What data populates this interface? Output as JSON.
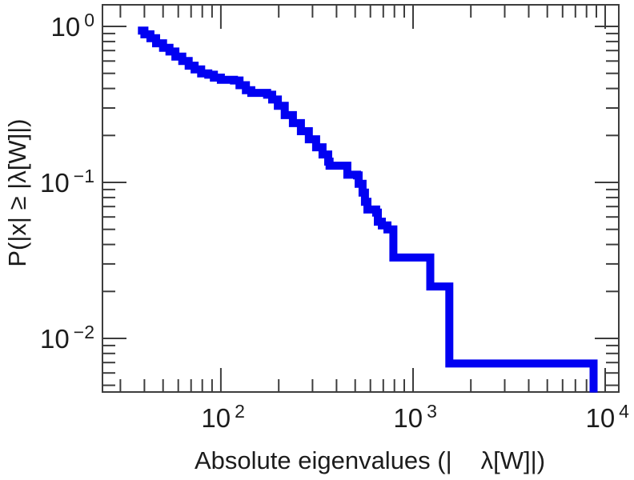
{
  "colors": {
    "line": "#0101f2",
    "axis": "#3d3d3d",
    "text": "#1c1c1c",
    "background": "#ffffff"
  },
  "labels": {
    "x_axis_prefix": "Absolute eigenvalues (|",
    "x_axis_suffix": "λ[W]|)",
    "y_axis": "P(|x| ≥ |λ[W]|)"
  },
  "ticks": {
    "x_major": [
      {
        "base": "10",
        "exp": "2",
        "value": 100
      },
      {
        "base": "10",
        "exp": "3",
        "value": 1000
      },
      {
        "base": "10",
        "exp": "4",
        "value": 10000
      }
    ],
    "y_major": [
      {
        "base": "10",
        "exp": "0",
        "value": 1
      },
      {
        "base": "10",
        "exp": "−1",
        "value": 0.1
      },
      {
        "base": "10",
        "exp": "−2",
        "value": 0.01
      }
    ],
    "x_minor": [
      30,
      40,
      50,
      60,
      70,
      80,
      90,
      200,
      300,
      400,
      500,
      600,
      700,
      800,
      900,
      2000,
      3000,
      4000,
      5000,
      6000,
      7000,
      8000,
      9000
    ],
    "y_minor": [
      0.9,
      0.8,
      0.7,
      0.6,
      0.5,
      0.4,
      0.3,
      0.2,
      0.09,
      0.08,
      0.07,
      0.06,
      0.05,
      0.04,
      0.03,
      0.02,
      0.009,
      0.008,
      0.007,
      0.006,
      0.005
    ]
  },
  "chart_data": {
    "type": "line",
    "subtype": "log-log complementary CDF step plot",
    "title": "",
    "xlabel": "Absolute eigenvalues (| λ[W]|)",
    "ylabel": "P(|x| ≥ |λ[W]|)",
    "x_scale": "log",
    "y_scale": "log",
    "xlim": [
      24.2,
      11770
    ],
    "ylim": [
      0.00453,
      1.376
    ],
    "grid": false,
    "legend": null,
    "series": [
      {
        "name": "eigenvalue-ccdf",
        "color": "#0101f2",
        "points": [
          [
            37,
            0.94
          ],
          [
            40,
            0.89
          ],
          [
            43,
            0.84
          ],
          [
            46,
            0.78
          ],
          [
            50,
            0.73
          ],
          [
            54,
            0.69
          ],
          [
            58,
            0.64
          ],
          [
            63,
            0.6
          ],
          [
            68,
            0.56
          ],
          [
            73,
            0.53
          ],
          [
            79,
            0.5
          ],
          [
            86,
            0.49
          ],
          [
            92,
            0.47
          ],
          [
            100,
            0.455
          ],
          [
            117,
            0.45
          ],
          [
            125,
            0.42
          ],
          [
            135,
            0.39
          ],
          [
            144,
            0.375
          ],
          [
            174,
            0.365
          ],
          [
            185,
            0.34
          ],
          [
            198,
            0.31
          ],
          [
            215,
            0.27
          ],
          [
            237,
            0.24
          ],
          [
            261,
            0.213
          ],
          [
            287,
            0.189
          ],
          [
            313,
            0.168
          ],
          [
            338,
            0.151
          ],
          [
            362,
            0.136
          ],
          [
            368,
            0.128
          ],
          [
            447,
            0.128
          ],
          [
            455,
            0.112
          ],
          [
            511,
            0.111
          ],
          [
            521,
            0.098
          ],
          [
            546,
            0.086
          ],
          [
            562,
            0.075
          ],
          [
            579,
            0.067
          ],
          [
            643,
            0.064
          ],
          [
            656,
            0.056
          ],
          [
            688,
            0.053
          ],
          [
            736,
            0.05
          ],
          [
            790,
            0.048
          ],
          [
            790,
            0.033
          ],
          [
            1230,
            0.033
          ],
          [
            1230,
            0.0215
          ],
          [
            1545,
            0.0215
          ],
          [
            1545,
            0.0069
          ],
          [
            8700,
            0.0069
          ],
          [
            8700,
            0.0045
          ]
        ]
      }
    ]
  }
}
